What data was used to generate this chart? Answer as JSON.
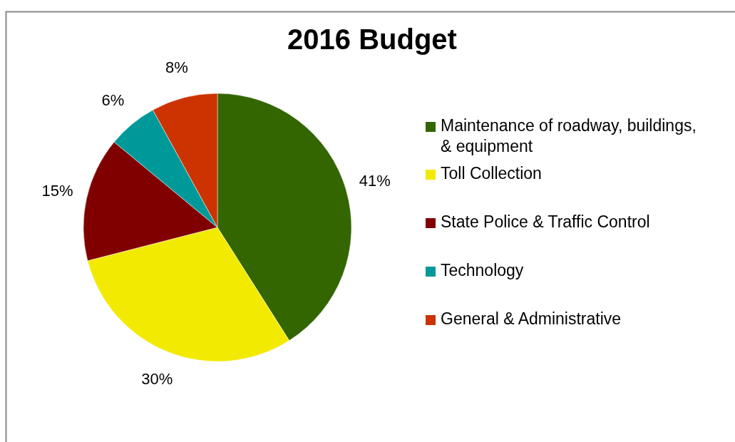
{
  "chart_data": {
    "type": "pie",
    "title": "2016 Budget",
    "categories": [
      "Maintenance of roadway, buildings, & equipment",
      "Toll Collection",
      "State Police & Traffic Control",
      "Technology",
      "General & Administrative"
    ],
    "values": [
      41,
      30,
      15,
      6,
      8
    ],
    "colors": [
      "#336600",
      "#f2ea00",
      "#800000",
      "#009999",
      "#cc3300"
    ],
    "value_labels": [
      "41%",
      "30%",
      "15%",
      "6%",
      "8%"
    ],
    "legend": "right"
  }
}
